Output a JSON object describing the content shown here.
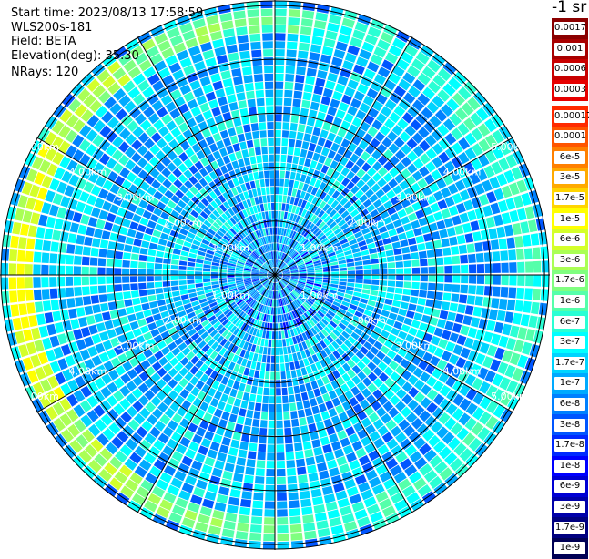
{
  "header": {
    "start_time": "Start time: 2023/08/13 17:58:59",
    "instrument": "WLS200s-181",
    "field": "Field: BETA",
    "elevation": "Elevation(deg): 35.30",
    "nrays": "NRays: 120"
  },
  "colorbar": {
    "unit": "-1 sr",
    "high_group": [
      {
        "label": "0.0017",
        "color": "#8b0000"
      },
      {
        "label": "0.001",
        "color": "#a80000"
      },
      {
        "label": "0.0006",
        "color": "#c80000"
      },
      {
        "label": "0.0003",
        "color": "#e60000"
      }
    ],
    "low_group": [
      {
        "label": "0.00017",
        "color": "#ff2a00"
      },
      {
        "label": "0.0001",
        "color": "#ff5500"
      },
      {
        "label": "6e-5",
        "color": "#ff8000"
      },
      {
        "label": "3e-5",
        "color": "#ffaa00"
      },
      {
        "label": "1.7e-5",
        "color": "#ffd400"
      },
      {
        "label": "1e-5",
        "color": "#ffff00"
      },
      {
        "label": "6e-6",
        "color": "#d4ff2a"
      },
      {
        "label": "3e-6",
        "color": "#aaff55"
      },
      {
        "label": "1.7e-6",
        "color": "#80ff80"
      },
      {
        "label": "1e-6",
        "color": "#55ffaa"
      },
      {
        "label": "6e-7",
        "color": "#2affd4"
      },
      {
        "label": "3e-7",
        "color": "#00ffff"
      },
      {
        "label": "1.7e-7",
        "color": "#00d4ff"
      },
      {
        "label": "1e-7",
        "color": "#00aaff"
      },
      {
        "label": "6e-8",
        "color": "#0080ff"
      },
      {
        "label": "3e-8",
        "color": "#0055ff"
      },
      {
        "label": "1.7e-8",
        "color": "#002aff"
      },
      {
        "label": "1e-8",
        "color": "#0000ff"
      },
      {
        "label": "6e-9",
        "color": "#0000d4"
      },
      {
        "label": "3e-9",
        "color": "#0000aa"
      },
      {
        "label": "1.7e-9",
        "color": "#000080"
      },
      {
        "label": "1e-9",
        "color": "#000055"
      }
    ]
  },
  "chart_data": {
    "type": "heatmap",
    "projection": "polar-ppi",
    "field": "BETA",
    "range_rings_km": [
      1.0,
      2.0,
      3.0,
      4.0,
      5.0
    ],
    "ring_label_text": {
      "1": "1.00km",
      "2": "2.00km",
      "3": "3.00km",
      "4": "4.00km",
      "5": "5.00km"
    },
    "max_range_km": 5.1,
    "azimuth_spokes_deg": [
      0,
      30,
      60,
      90,
      120,
      150,
      180,
      210,
      240,
      270,
      300,
      330
    ],
    "n_rays": 120,
    "n_gates": 34,
    "range_gate_km": 0.15,
    "background_level_range": [
      "3e-8",
      "6e-7"
    ],
    "enhanced_ring_km": [
      4.5,
      4.9
    ],
    "enhanced_ring_level_max": "1e-5",
    "enhanced_ring_peak_azimuth_deg": 270
  }
}
